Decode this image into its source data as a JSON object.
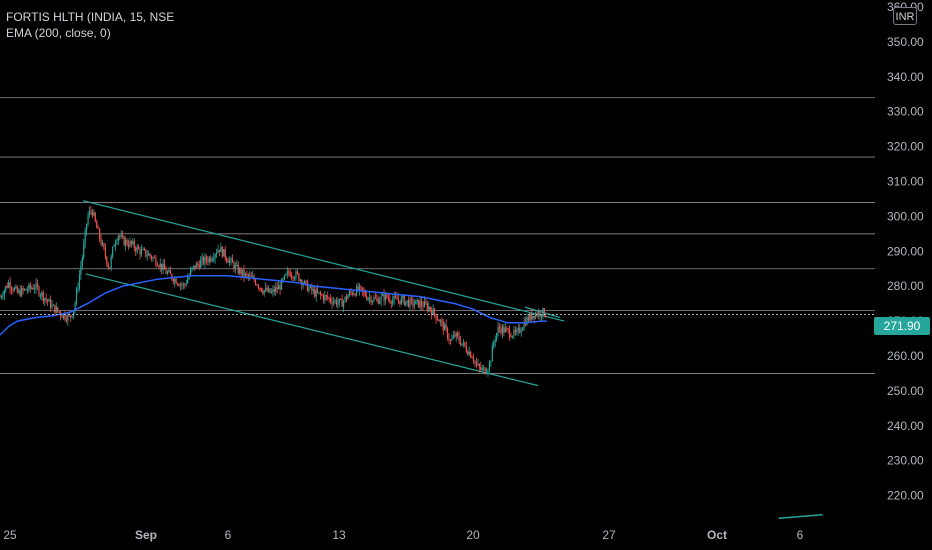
{
  "legend": {
    "symbol": "FORTIS HLTH (INDIA, 15, NSE",
    "indicator": "EMA (200, close, 0)"
  },
  "currency": "INR",
  "last_price": "271.90",
  "colors": {
    "up": "#26a69a",
    "down": "#ef5350",
    "ema": "#2962ff",
    "channel": "#26a69a",
    "hline": "#b2b5be",
    "price_tag": "#26a69a"
  },
  "chart_data": {
    "type": "candlestick",
    "ylim": [
      213,
      362
    ],
    "y_ticks": [
      "360.00",
      "350.00",
      "340.00",
      "330.00",
      "320.00",
      "310.00",
      "300.00",
      "290.00",
      "280.00",
      "270.00",
      "260.00",
      "250.00",
      "240.00",
      "230.00",
      "220.00"
    ],
    "x_ticks": [
      "25",
      "Sep",
      "6",
      "13",
      "20",
      "27",
      "Oct",
      "6"
    ],
    "horizontal_levels": [
      334,
      317,
      304,
      295,
      285,
      273,
      255
    ],
    "last_price": 271.9,
    "channel_upper": {
      "start": [
        0.095,
        304.5
      ],
      "end": [
        0.645,
        270
      ]
    },
    "channel_lower": {
      "start": [
        0.098,
        283.5
      ],
      "end": [
        0.615,
        251.5
      ]
    },
    "small_channel_upper": {
      "start": [
        0.6,
        274
      ],
      "end": [
        0.64,
        271
      ]
    },
    "price_path": [
      [
        0.0,
        277
      ],
      [
        0.01,
        281
      ],
      [
        0.02,
        278
      ],
      [
        0.03,
        279
      ],
      [
        0.04,
        280
      ],
      [
        0.05,
        277
      ],
      [
        0.06,
        274
      ],
      [
        0.07,
        272
      ],
      [
        0.08,
        271
      ],
      [
        0.085,
        274
      ],
      [
        0.095,
        290
      ],
      [
        0.1,
        300
      ],
      [
        0.105,
        302
      ],
      [
        0.11,
        297
      ],
      [
        0.115,
        293
      ],
      [
        0.12,
        289
      ],
      [
        0.125,
        285
      ],
      [
        0.13,
        292
      ],
      [
        0.135,
        295
      ],
      [
        0.14,
        293
      ],
      [
        0.15,
        292
      ],
      [
        0.16,
        290
      ],
      [
        0.17,
        289
      ],
      [
        0.18,
        287
      ],
      [
        0.19,
        284
      ],
      [
        0.2,
        282
      ],
      [
        0.21,
        280
      ],
      [
        0.22,
        285
      ],
      [
        0.23,
        287
      ],
      [
        0.24,
        288
      ],
      [
        0.25,
        291
      ],
      [
        0.26,
        288
      ],
      [
        0.27,
        285
      ],
      [
        0.28,
        283
      ],
      [
        0.29,
        282
      ],
      [
        0.3,
        279
      ],
      [
        0.31,
        278
      ],
      [
        0.32,
        280
      ],
      [
        0.33,
        284
      ],
      [
        0.34,
        283
      ],
      [
        0.35,
        280
      ],
      [
        0.36,
        278
      ],
      [
        0.37,
        277
      ],
      [
        0.38,
        276
      ],
      [
        0.39,
        275
      ],
      [
        0.4,
        278
      ],
      [
        0.41,
        279
      ],
      [
        0.42,
        277
      ],
      [
        0.43,
        276
      ],
      [
        0.44,
        277
      ],
      [
        0.45,
        276
      ],
      [
        0.46,
        276
      ],
      [
        0.47,
        275
      ],
      [
        0.48,
        275
      ],
      [
        0.49,
        274
      ],
      [
        0.5,
        271
      ],
      [
        0.51,
        267
      ],
      [
        0.515,
        264
      ],
      [
        0.52,
        266
      ],
      [
        0.53,
        263
      ],
      [
        0.54,
        260
      ],
      [
        0.545,
        257
      ],
      [
        0.55,
        256
      ],
      [
        0.555,
        256
      ],
      [
        0.56,
        258
      ],
      [
        0.565,
        265
      ],
      [
        0.57,
        268
      ],
      [
        0.58,
        267
      ],
      [
        0.59,
        266
      ],
      [
        0.6,
        270
      ],
      [
        0.61,
        272
      ],
      [
        0.62,
        272.5
      ],
      [
        0.625,
        271.9
      ]
    ],
    "ema_path": [
      [
        0.0,
        266
      ],
      [
        0.01,
        268.5
      ],
      [
        0.02,
        270
      ],
      [
        0.04,
        271
      ],
      [
        0.06,
        271.5
      ],
      [
        0.08,
        272.5
      ],
      [
        0.1,
        275
      ],
      [
        0.12,
        278
      ],
      [
        0.14,
        280
      ],
      [
        0.16,
        281
      ],
      [
        0.18,
        282
      ],
      [
        0.2,
        282.5
      ],
      [
        0.22,
        283
      ],
      [
        0.24,
        283
      ],
      [
        0.26,
        283
      ],
      [
        0.28,
        282.5
      ],
      [
        0.3,
        282
      ],
      [
        0.32,
        281.5
      ],
      [
        0.34,
        281
      ],
      [
        0.36,
        280
      ],
      [
        0.38,
        279.5
      ],
      [
        0.4,
        279
      ],
      [
        0.42,
        278.5
      ],
      [
        0.44,
        278
      ],
      [
        0.46,
        277.5
      ],
      [
        0.48,
        277
      ],
      [
        0.5,
        276
      ],
      [
        0.52,
        275
      ],
      [
        0.54,
        273.5
      ],
      [
        0.56,
        271
      ],
      [
        0.58,
        269.5
      ],
      [
        0.6,
        269.5
      ],
      [
        0.62,
        270
      ],
      [
        0.625,
        270
      ]
    ],
    "ema_tail": [
      [
        0.89,
        213.5
      ],
      [
        0.94,
        214.5
      ]
    ]
  }
}
